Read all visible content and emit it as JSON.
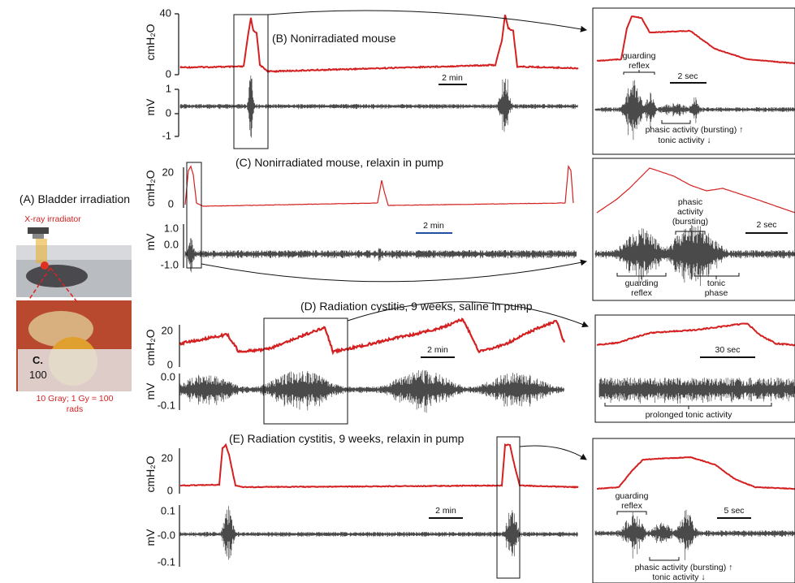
{
  "panel_a": {
    "title": "(A) Bladder irradiation",
    "device": "X-ray irradiator",
    "ruler_letter": "C.",
    "ruler_number": "100",
    "caption": [
      "10 Gray; 1 Gy = 100",
      "rads"
    ]
  },
  "panel_b": {
    "title": "(B) Nonirradiated mouse",
    "pressure_label": "cmH₂O",
    "pressure_ticks": [
      "40",
      "0"
    ],
    "emg_label": "mV",
    "emg_ticks": [
      "1",
      "0",
      "-1"
    ],
    "scale_bar": "2 min",
    "inset": {
      "scale_bar": "2 sec",
      "guarding_reflex": [
        "guarding",
        "reflex"
      ],
      "phasic": "phasic activity (bursting) ↑",
      "tonic": "tonic activity ↓"
    }
  },
  "panel_c": {
    "title": "(C) Nonirradiated mouse, relaxin in pump",
    "pressure_label": "cmH₂O",
    "pressure_ticks": [
      "20",
      "0"
    ],
    "emg_label": "mV",
    "emg_ticks": [
      "1.0",
      "0.0",
      "-1.0"
    ],
    "scale_bar": "2 min",
    "inset": {
      "scale_bar": "2 sec",
      "phasic": [
        "phasic",
        "activity",
        "(bursting)"
      ],
      "guarding_reflex": [
        "guarding",
        "reflex"
      ],
      "tonic": [
        "tonic",
        "phase"
      ]
    }
  },
  "panel_d": {
    "title": "(D) Radiation cystitis, 9 weeks, saline in pump",
    "pressure_label": "cmH₂O",
    "pressure_ticks": [
      "20",
      "0"
    ],
    "emg_label": "mV",
    "emg_ticks": [
      "0.0",
      "-0.1"
    ],
    "scale_bar": "2 min",
    "inset": {
      "scale_bar": "30 sec",
      "tonic": "prolonged tonic activity"
    }
  },
  "panel_e": {
    "title": "(E) Radiation cystitis, 9 weeks, relaxin in pump",
    "pressure_label": "cmH₂O",
    "pressure_ticks": [
      "20",
      "0"
    ],
    "emg_label": "mV",
    "emg_ticks": [
      "0.1",
      "-0.0",
      "-0.1"
    ],
    "scale_bar": "2 min",
    "inset": {
      "scale_bar": "5 sec",
      "guarding_reflex": [
        "guarding",
        "reflex"
      ],
      "phasic": "phasic activity (bursting) ↑",
      "tonic": "tonic activity ↓"
    }
  }
}
